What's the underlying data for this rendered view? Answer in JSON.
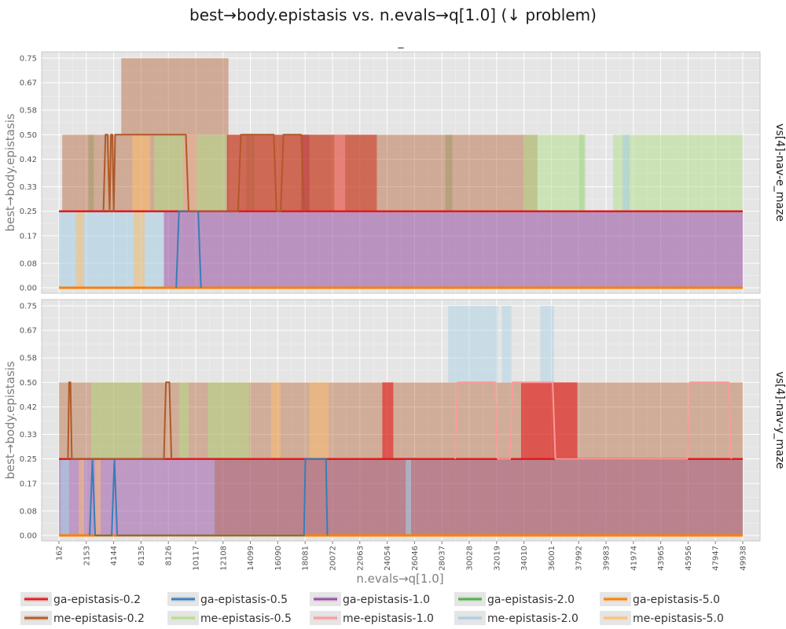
{
  "chart_data": {
    "type": "area",
    "title": "best→body.epistasis vs. n.evals→q[1.0] (↓ problem)",
    "subtitle": "_",
    "xlabel": "n.evals→q[1.0]",
    "ylabel": "best→body.epistasis",
    "xlim": [
      162,
      49938
    ],
    "ylim": [
      0,
      0.75
    ],
    "x_ticks": [
      "162",
      "2153",
      "4144",
      "6135",
      "8126",
      "10117",
      "12108",
      "14099",
      "16090",
      "18081",
      "20072",
      "22063",
      "24054",
      "26046",
      "28037",
      "30028",
      "32019",
      "34010",
      "36001",
      "37992",
      "39983",
      "41974",
      "43965",
      "45956",
      "47947",
      "49938"
    ],
    "y_ticks": [
      "0.00",
      "0.08",
      "0.17",
      "0.25",
      "0.33",
      "0.42",
      "0.50",
      "0.58",
      "0.67",
      "0.75"
    ],
    "grid": true,
    "legend_position": "bottom",
    "series": [
      {
        "name": "ga-epistasis-0.2",
        "color": "#e41a1c"
      },
      {
        "name": "ga-epistasis-0.5",
        "color": "#377eb8"
      },
      {
        "name": "ga-epistasis-1.0",
        "color": "#984ea3"
      },
      {
        "name": "ga-epistasis-2.0",
        "color": "#4daf4a"
      },
      {
        "name": "ga-epistasis-5.0",
        "color": "#ff7f00"
      },
      {
        "name": "me-epistasis-0.2",
        "color": "#b15928"
      },
      {
        "name": "me-epistasis-0.5",
        "color": "#b2df8a"
      },
      {
        "name": "me-epistasis-1.0",
        "color": "#fb9a99"
      },
      {
        "name": "me-epistasis-2.0",
        "color": "#a6cee3"
      },
      {
        "name": "me-epistasis-5.0",
        "color": "#fdbf6f"
      }
    ],
    "panels": [
      {
        "facet": "vs[4]-nav-e_maze",
        "bands": [
          {
            "series": "ga-epistasis-2.0",
            "opacity": 0.28,
            "ranges": [
              [
                2300,
                2700,
                0.25,
                0.5
              ],
              [
                13800,
                14400,
                0.25,
                0.5
              ],
              [
                28300,
                28800,
                0.25,
                0.5
              ],
              [
                38000,
                38400,
                0.25,
                0.5
              ]
            ]
          },
          {
            "series": "ga-epistasis-1.0",
            "opacity": 0.55,
            "ranges": [
              [
                7800,
                49938,
                0,
                0.25
              ],
              [
                17800,
                18400,
                0.25,
                0.5
              ]
            ]
          },
          {
            "series": "ga-epistasis-0.2",
            "opacity": 0.55,
            "ranges": [
              [
                12400,
                23300,
                0.25,
                0.5
              ]
            ]
          },
          {
            "series": "me-epistasis-0.2",
            "opacity": 0.42,
            "ranges": [
              [
                400,
                700,
                0.25,
                0.5
              ],
              [
                4700,
                12500,
                0.5,
                0.75
              ],
              [
                700,
                12500,
                0.25,
                0.5
              ],
              [
                12400,
                35000,
                0.25,
                0.5
              ]
            ]
          },
          {
            "series": "me-epistasis-0.5",
            "opacity": 0.5,
            "ranges": [
              [
                7100,
                12300,
                0.25,
                0.5
              ],
              [
                34000,
                38500,
                0.25,
                0.5
              ],
              [
                40500,
                41500,
                0.25,
                0.5
              ],
              [
                41500,
                49938,
                0.25,
                0.5
              ]
            ]
          },
          {
            "series": "me-epistasis-1.0",
            "opacity": 0.5,
            "ranges": [
              [
                9200,
                10200,
                0.25,
                0.5
              ],
              [
                20200,
                21000,
                0.25,
                0.5
              ]
            ]
          },
          {
            "series": "me-epistasis-2.0",
            "opacity": 0.55,
            "ranges": [
              [
                162,
                7800,
                0,
                0.25
              ],
              [
                41200,
                41700,
                0.25,
                0.5
              ]
            ]
          },
          {
            "series": "me-epistasis-5.0",
            "opacity": 0.55,
            "ranges": [
              [
                1400,
                2000,
                0,
                0.25
              ],
              [
                5500,
                6800,
                0.25,
                0.5
              ],
              [
                5600,
                6400,
                0,
                0.25
              ]
            ]
          }
        ],
        "lines": [
          {
            "series": "ga-epistasis-0.2",
            "width": 2.5,
            "points": [
              [
                162,
                0.25
              ],
              [
                49938,
                0.25
              ]
            ]
          },
          {
            "series": "ga-epistasis-5.0",
            "width": 3,
            "points": [
              [
                162,
                0
              ],
              [
                49938,
                0
              ]
            ]
          },
          {
            "series": "ga-epistasis-0.5",
            "width": 2,
            "points": [
              [
                8700,
                0
              ],
              [
                8900,
                0.25
              ],
              [
                10300,
                0.25
              ],
              [
                10500,
                0
              ]
            ]
          },
          {
            "series": "me-epistasis-0.2",
            "width": 2,
            "points": [
              [
                3400,
                0.25
              ],
              [
                3550,
                0.5
              ],
              [
                3700,
                0.5
              ],
              [
                3850,
                0.25
              ],
              [
                3950,
                0.5
              ],
              [
                4050,
                0.5
              ],
              [
                4150,
                0.25
              ],
              [
                4250,
                0.5
              ],
              [
                9400,
                0.5
              ],
              [
                9600,
                0.25
              ],
              [
                13200,
                0.25
              ],
              [
                13400,
                0.5
              ],
              [
                15800,
                0.5
              ],
              [
                16000,
                0.25
              ],
              [
                16300,
                0.25
              ],
              [
                16500,
                0.5
              ],
              [
                17800,
                0.5
              ],
              [
                18000,
                0.25
              ]
            ]
          }
        ]
      },
      {
        "facet": "vs[4]-nav-y_maze",
        "bands": [
          {
            "series": "me-epistasis-2.0",
            "opacity": 0.45,
            "ranges": [
              [
                28500,
                32100,
                0.5,
                0.75
              ],
              [
                32400,
                33100,
                0.5,
                0.75
              ],
              [
                35200,
                36200,
                0.5,
                0.75
              ]
            ]
          },
          {
            "series": "me-epistasis-0.2",
            "opacity": 0.4,
            "ranges": [
              [
                162,
                49938,
                0.25,
                0.5
              ]
            ]
          },
          {
            "series": "me-epistasis-0.5",
            "opacity": 0.5,
            "ranges": [
              [
                2500,
                6200,
                0.25,
                0.5
              ],
              [
                8900,
                9600,
                0.25,
                0.5
              ],
              [
                11000,
                14000,
                0.25,
                0.5
              ]
            ]
          },
          {
            "series": "me-epistasis-5.0",
            "opacity": 0.5,
            "ranges": [
              [
                15600,
                16300,
                0.25,
                0.5
              ],
              [
                18400,
                19800,
                0.25,
                0.5
              ]
            ]
          },
          {
            "series": "ga-epistasis-0.2",
            "opacity": 0.6,
            "ranges": [
              [
                23700,
                24500,
                0.25,
                0.5
              ],
              [
                33800,
                37900,
                0.25,
                0.5
              ]
            ]
          },
          {
            "series": "ga-epistasis-1.0",
            "opacity": 0.5,
            "ranges": [
              [
                162,
                49938,
                0,
                0.25
              ]
            ]
          },
          {
            "series": "me-epistasis-0.2",
            "opacity": 0.35,
            "ranges": [
              [
                11500,
                49938,
                0,
                0.25
              ]
            ]
          },
          {
            "series": "me-epistasis-2.0",
            "opacity": 0.6,
            "ranges": [
              [
                300,
                900,
                0,
                0.25
              ],
              [
                25400,
                25800,
                0,
                0.25
              ]
            ]
          },
          {
            "series": "me-epistasis-5.0",
            "opacity": 0.5,
            "ranges": [
              [
                1600,
                2000,
                0,
                0.25
              ],
              [
                2800,
                3200,
                0,
                0.25
              ]
            ]
          }
        ],
        "lines": [
          {
            "series": "ga-epistasis-0.2",
            "width": 2.5,
            "points": [
              [
                162,
                0.25
              ],
              [
                49938,
                0.25
              ]
            ]
          },
          {
            "series": "ga-epistasis-5.0",
            "width": 3,
            "points": [
              [
                162,
                0
              ],
              [
                49938,
                0
              ]
            ]
          },
          {
            "series": "ga-epistasis-0.5",
            "width": 2,
            "points": [
              [
                2400,
                0
              ],
              [
                2600,
                0.25
              ],
              [
                2800,
                0
              ],
              [
                4000,
                0
              ],
              [
                4200,
                0.25
              ],
              [
                4400,
                0
              ],
              [
                18000,
                0
              ],
              [
                18100,
                0.25
              ],
              [
                19600,
                0.25
              ],
              [
                19700,
                0
              ]
            ]
          },
          {
            "series": "me-epistasis-0.2",
            "width": 2,
            "points": [
              [
                820,
                0.25
              ],
              [
                900,
                0.5
              ],
              [
                1000,
                0.5
              ],
              [
                1100,
                0.25
              ],
              [
                7800,
                0.25
              ],
              [
                7950,
                0.5
              ],
              [
                8200,
                0.5
              ],
              [
                8350,
                0.25
              ]
            ]
          },
          {
            "series": "me-epistasis-1.0",
            "width": 2,
            "points": [
              [
                29000,
                0.25
              ],
              [
                29200,
                0.5
              ],
              [
                31900,
                0.5
              ],
              [
                32100,
                0.25
              ],
              [
                33000,
                0.25
              ],
              [
                33200,
                0.5
              ],
              [
                36100,
                0.5
              ],
              [
                36300,
                0.25
              ],
              [
                45900,
                0.25
              ],
              [
                46100,
                0.5
              ],
              [
                48900,
                0.5
              ],
              [
                49100,
                0.25
              ]
            ]
          }
        ]
      }
    ]
  }
}
